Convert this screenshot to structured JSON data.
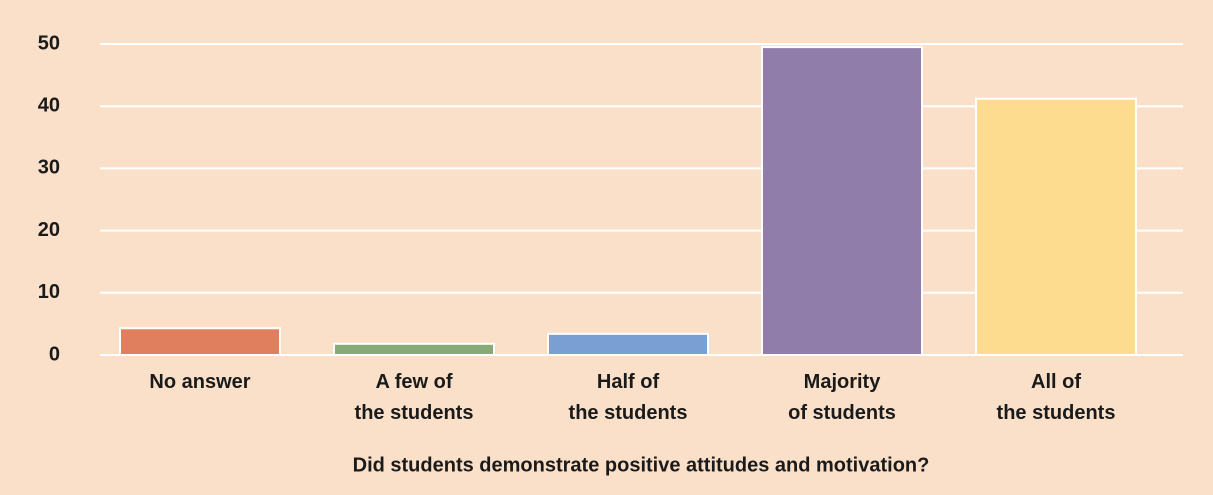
{
  "chart_data": {
    "type": "bar",
    "xlabel": "Did students demonstrate positive attitudes and motivation?",
    "categories": [
      "No answer",
      "A few of\nthe students",
      "Half of\nthe students",
      "Majority\nof students",
      "All of\nthe students"
    ],
    "values": [
      4.3,
      1.8,
      3.4,
      49.5,
      41.2
    ],
    "colors": [
      "#e07f5e",
      "#88a978",
      "#7a9fd2",
      "#917daa",
      "#fddb8f"
    ],
    "ylim": [
      0,
      50
    ],
    "yticks": [
      0,
      10,
      20,
      30,
      40,
      50
    ],
    "grid": true
  }
}
